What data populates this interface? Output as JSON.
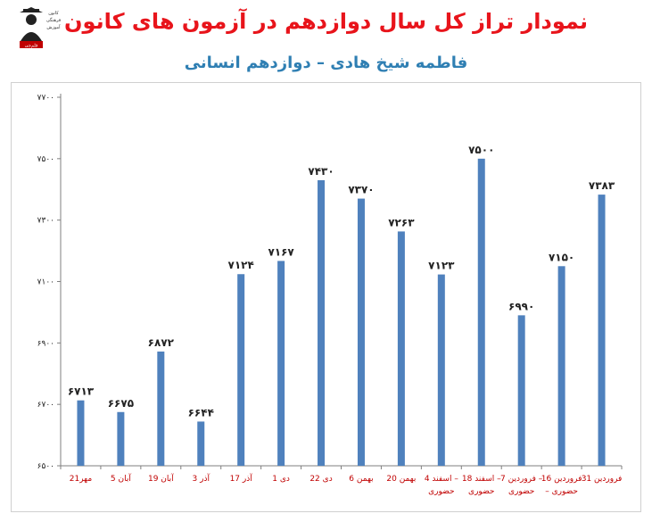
{
  "header": {
    "title": "نمودار تراز کل سال دوازدهم در آزمون های کانون",
    "subtitle": "فاطمه شیخ هادی – دوازدهم انسانی",
    "logo_text": [
      "کانون",
      "فرهنگی",
      "آموزش",
      "قلم‌چی"
    ]
  },
  "colors": {
    "bar": "#4f81bd",
    "title": "#e8141b",
    "subtitle": "#2f7fb3",
    "category": "#c00000"
  },
  "chart_data": {
    "type": "bar",
    "title": "",
    "xlabel": "",
    "ylabel": "",
    "ylim": [
      6500,
      7700
    ],
    "yticks": [
      6500,
      6700,
      6900,
      7100,
      7300,
      7500,
      7700
    ],
    "ytick_labels": [
      "۶۵۰۰",
      "۶۷۰۰",
      "۶۹۰۰",
      "۷۱۰۰",
      "۷۳۰۰",
      "۷۵۰۰",
      "۷۷۰۰"
    ],
    "categories": [
      [
        "21مهر"
      ],
      [
        "5 آبان"
      ],
      [
        "19 آبان"
      ],
      [
        "3 آذر"
      ],
      [
        "17 آذر"
      ],
      [
        "1 دی"
      ],
      [
        "22 دی"
      ],
      [
        "6 بهمن"
      ],
      [
        "20 بهمن"
      ],
      [
        "4 اسفند –",
        "حضوری"
      ],
      [
        "18 اسفند –",
        "حضوری"
      ],
      [
        "7 فروردین –",
        "حضوری"
      ],
      [
        "16 فروردین",
        "– حضوری"
      ],
      [
        "31 فروردین"
      ]
    ],
    "values": [
      6713,
      6675,
      6872,
      6644,
      7124,
      7167,
      7430,
      7370,
      7263,
      7123,
      7500,
      6990,
      7150,
      7383
    ],
    "value_labels": [
      "۶۷۱۳",
      "۶۶۷۵",
      "۶۸۷۲",
      "۶۶۴۴",
      "۷۱۲۴",
      "۷۱۶۷",
      "۷۴۳۰",
      "۷۳۷۰",
      "۷۲۶۳",
      "۷۱۲۳",
      "۷۵۰۰",
      "۶۹۹۰",
      "۷۱۵۰",
      "۷۳۸۳"
    ],
    "grid": false,
    "legend": "none"
  }
}
